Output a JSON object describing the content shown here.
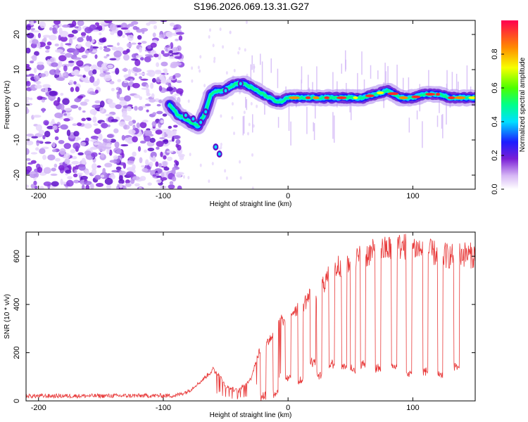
{
  "title": "S196.2026.069.13.31.G27",
  "chart_data": [
    {
      "type": "heatmap",
      "name": "spectrogram",
      "xlabel": "Height of straight line (km)",
      "ylabel": "Frequency (Hz)",
      "xlim": [
        -210,
        150
      ],
      "ylim": [
        -24,
        24
      ],
      "xticks": [
        -200,
        -100,
        0,
        100
      ],
      "yticks": [
        -20,
        -10,
        0,
        10,
        20
      ],
      "colorbar": {
        "label": "Normalized spectral amplitude",
        "range": [
          0,
          1
        ],
        "ticks": [
          "0.0",
          "0.2",
          "0.4",
          "0.6",
          "0.8"
        ]
      },
      "ridge": {
        "x": [
          -95,
          -88,
          -82,
          -78,
          -72,
          -66,
          -62,
          -58,
          -52,
          -47,
          -42,
          -35,
          -30,
          -25,
          -20,
          -15,
          -10,
          -5,
          0,
          20,
          40,
          60,
          70,
          80,
          85,
          90,
          95,
          100,
          110,
          120,
          130,
          150
        ],
        "y": [
          0,
          -3,
          -4,
          -5,
          -6,
          -2,
          3,
          4,
          4,
          5,
          6,
          6,
          5,
          4,
          3,
          2,
          1,
          1,
          2,
          2,
          2,
          2,
          3,
          4,
          3,
          2,
          2,
          2,
          3,
          3,
          2,
          2
        ]
      },
      "noise_region_x": [
        -210,
        -85
      ]
    },
    {
      "type": "line",
      "name": "snr",
      "xlabel": "Height of straight line (km)",
      "ylabel": "SNR (10 * v/v)",
      "xlim": [
        -210,
        150
      ],
      "ylim": [
        0,
        700
      ],
      "xticks": [
        -200,
        -100,
        0,
        100
      ],
      "yticks": [
        0,
        200,
        400,
        600
      ],
      "color": "#e83a3a",
      "envelope": {
        "x": [
          -210,
          -90,
          -80,
          -70,
          -60,
          -55,
          -50,
          -40,
          -30,
          -25,
          -20,
          -15,
          -10,
          -5,
          0,
          5,
          10,
          15,
          20,
          25,
          30,
          35,
          40,
          50,
          60,
          70,
          80,
          90,
          100,
          110,
          120,
          130,
          140,
          150
        ],
        "y": [
          20,
          22,
          40,
          80,
          130,
          110,
          60,
          40,
          90,
          180,
          240,
          250,
          300,
          330,
          350,
          380,
          390,
          420,
          450,
          460,
          500,
          530,
          560,
          580,
          600,
          620,
          630,
          640,
          640,
          620,
          610,
          600,
          610,
          600
        ]
      },
      "dips": {
        "x": [
          -20,
          -10,
          0,
          10,
          20,
          25,
          35,
          45,
          52,
          60,
          72,
          85,
          97,
          110,
          122,
          135
        ],
        "y": [
          10,
          20,
          80,
          70,
          150,
          90,
          140,
          130,
          120,
          140,
          120,
          130,
          100,
          110,
          90,
          130
        ]
      }
    }
  ]
}
